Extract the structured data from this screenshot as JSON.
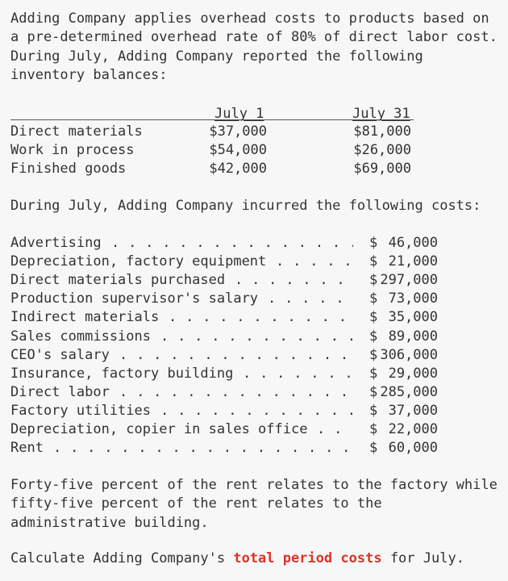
{
  "intro": "Adding Company applies overhead costs to products based on a pre-determined overhead rate of 80% of direct labor cost. During July, Adding Company reported the following inventory balances:",
  "inventory": {
    "headers": [
      "July 1",
      "July 31"
    ],
    "rows": [
      {
        "label": "Direct materials",
        "july1": "$37,000",
        "july31": "$81,000"
      },
      {
        "label": "Work in process",
        "july1": "$54,000",
        "july31": "$26,000"
      },
      {
        "label": "Finished goods",
        "july1": "$42,000",
        "july31": "$69,000"
      }
    ]
  },
  "during_text": "During July, Adding Company incurred the following costs:",
  "costs": [
    {
      "label": "Advertising",
      "currency": "$",
      "amount": "46,000"
    },
    {
      "label": "Depreciation, factory equipment",
      "currency": "$",
      "amount": "21,000"
    },
    {
      "label": "Direct materials purchased",
      "currency": "$",
      "amount": "297,000"
    },
    {
      "label": "Production supervisor's salary",
      "currency": "$",
      "amount": "73,000"
    },
    {
      "label": "Indirect materials",
      "currency": "$",
      "amount": "35,000"
    },
    {
      "label": "Sales commissions",
      "currency": "$",
      "amount": "89,000"
    },
    {
      "label": "CEO's salary",
      "currency": "$",
      "amount": "306,000"
    },
    {
      "label": "Insurance, factory building",
      "currency": "$",
      "amount": "29,000"
    },
    {
      "label": "Direct labor",
      "currency": "$",
      "amount": "285,000"
    },
    {
      "label": "Factory utilities",
      "currency": "$",
      "amount": "37,000"
    },
    {
      "label": "Depreciation, copier in sales office",
      "currency": "$",
      "amount": "22,000"
    },
    {
      "label": "Rent",
      "currency": "$",
      "amount": "60,000"
    }
  ],
  "rent_note": "Forty-five percent of the rent relates to the factory while fifty-five percent of the rent relates to the administrative building.",
  "question": {
    "prefix": "Calculate Adding Company's ",
    "highlight": "total period costs",
    "suffix": " for July."
  },
  "colors": {
    "background": "#f7f7f7",
    "text": "#333333",
    "highlight": "#d9342b"
  }
}
